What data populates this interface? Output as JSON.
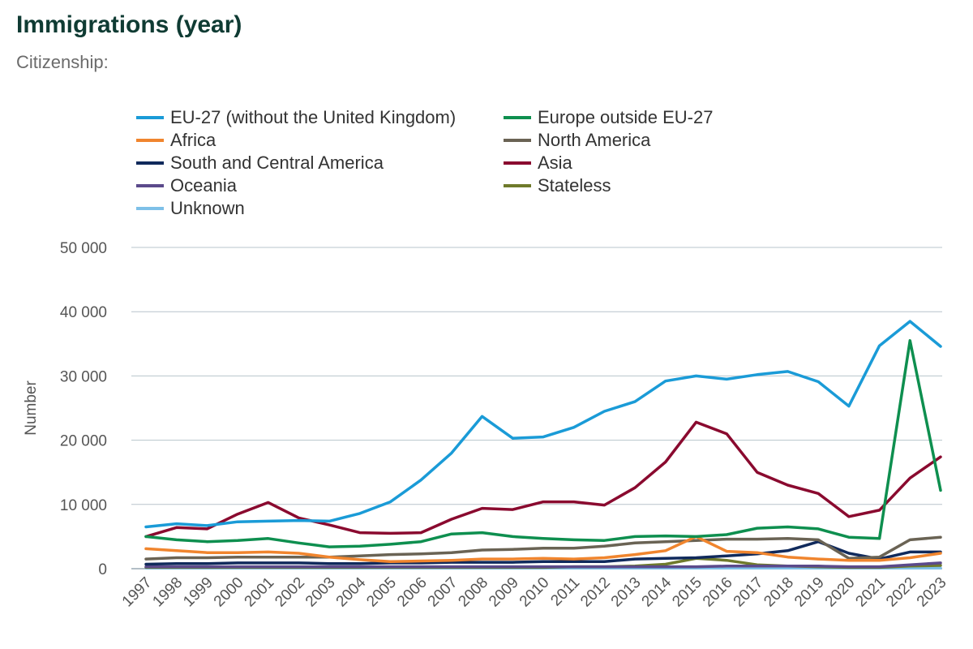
{
  "chart_data": {
    "type": "line",
    "title": "Immigrations (year)",
    "subtitle": "Citizenship:",
    "ylabel": "Number",
    "xlabel": "",
    "ylim": [
      0,
      50000
    ],
    "yticks": [
      0,
      10000,
      20000,
      30000,
      40000,
      50000
    ],
    "ytick_labels": [
      "0",
      "10 000",
      "20 000",
      "30 000",
      "40 000",
      "50 000"
    ],
    "grid": true,
    "legend_position": "top",
    "x": [
      "1997",
      "1998",
      "1999",
      "2000",
      "2001",
      "2002",
      "2003",
      "2004",
      "2005",
      "2006",
      "2007",
      "2008",
      "2009",
      "2010",
      "2011",
      "2012",
      "2013",
      "2014",
      "2015",
      "2016",
      "2017",
      "2018",
      "2019",
      "2020",
      "2021",
      "2022",
      "2023"
    ],
    "series": [
      {
        "name": "EU-27 (without the United Kingdom)",
        "color": "#1a9bd7",
        "values": [
          6500,
          7000,
          6700,
          7300,
          7400,
          7500,
          7400,
          8600,
          10400,
          13800,
          18000,
          23700,
          20300,
          20500,
          22000,
          24500,
          26000,
          29200,
          30000,
          29500,
          30200,
          30700,
          29100,
          25300,
          34700,
          38500,
          34600
        ]
      },
      {
        "name": "Europe outside EU-27",
        "color": "#0e8f4f",
        "values": [
          5000,
          4500,
          4200,
          4400,
          4700,
          4000,
          3400,
          3500,
          3800,
          4200,
          5400,
          5600,
          5000,
          4700,
          4500,
          4400,
          5000,
          5100,
          5000,
          5300,
          6300,
          6500,
          6200,
          4900,
          4700,
          35500,
          12200
        ]
      },
      {
        "name": "Africa",
        "color": "#f0852e",
        "values": [
          3100,
          2800,
          2500,
          2500,
          2600,
          2400,
          1800,
          1400,
          1100,
          1200,
          1300,
          1500,
          1500,
          1600,
          1500,
          1700,
          2200,
          2800,
          5000,
          2700,
          2500,
          1800,
          1500,
          1300,
          1300,
          1700,
          2400
        ]
      },
      {
        "name": "North America",
        "color": "#6a6354",
        "values": [
          1500,
          1700,
          1700,
          1800,
          1800,
          1800,
          1800,
          2000,
          2200,
          2300,
          2500,
          2900,
          3000,
          3200,
          3200,
          3500,
          4000,
          4200,
          4400,
          4600,
          4600,
          4700,
          4500,
          1600,
          1800,
          4500,
          4900
        ]
      },
      {
        "name": "South and Central America",
        "color": "#102a5c",
        "values": [
          700,
          800,
          800,
          900,
          900,
          900,
          800,
          800,
          900,
          900,
          1000,
          1000,
          1000,
          1100,
          1100,
          1100,
          1500,
          1600,
          1700,
          2000,
          2300,
          2800,
          4200,
          2400,
          1500,
          2600,
          2600
        ]
      },
      {
        "name": "Asia",
        "color": "#8a0a2f",
        "values": [
          5000,
          6400,
          6200,
          8500,
          10300,
          7900,
          6800,
          5600,
          5500,
          5600,
          7700,
          9400,
          9200,
          10400,
          10400,
          9900,
          12600,
          16600,
          22800,
          21000,
          15000,
          13000,
          11700,
          8100,
          9100,
          14100,
          17400
        ]
      },
      {
        "name": "Oceania",
        "color": "#5b4a8b",
        "values": [
          300,
          300,
          300,
          300,
          300,
          300,
          300,
          300,
          300,
          300,
          300,
          300,
          300,
          300,
          300,
          300,
          300,
          300,
          300,
          400,
          400,
          400,
          400,
          300,
          300,
          600,
          900
        ]
      },
      {
        "name": "Stateless",
        "color": "#6f7a2b",
        "values": [
          200,
          200,
          200,
          200,
          200,
          200,
          200,
          200,
          200,
          200,
          200,
          200,
          200,
          200,
          300,
          300,
          400,
          700,
          1600,
          1300,
          600,
          400,
          300,
          200,
          200,
          400,
          500
        ]
      },
      {
        "name": "Unknown",
        "color": "#7ec0e8",
        "values": [
          100,
          100,
          100,
          100,
          100,
          100,
          100,
          100,
          100,
          100,
          100,
          100,
          100,
          100,
          100,
          100,
          100,
          100,
          100,
          100,
          100,
          100,
          100,
          100,
          100,
          100,
          100
        ]
      }
    ]
  }
}
